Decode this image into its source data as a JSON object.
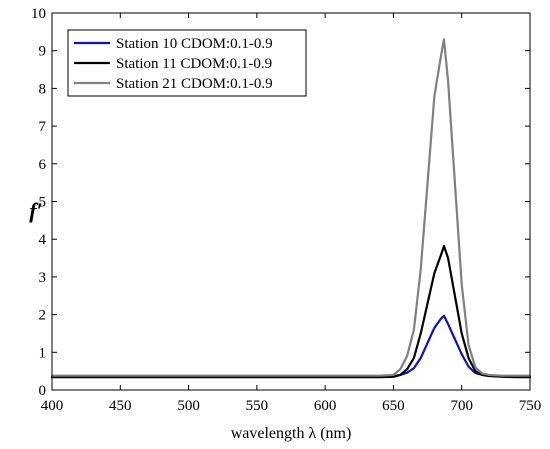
{
  "chart_data": {
    "type": "line",
    "xlabel": "wavelength λ (nm)",
    "ylabel": "f′",
    "xlim": [
      400,
      750
    ],
    "ylim": [
      0,
      10
    ],
    "xticks": [
      400,
      450,
      500,
      550,
      600,
      650,
      700,
      750
    ],
    "yticks": [
      0,
      1,
      2,
      3,
      4,
      5,
      6,
      7,
      8,
      9,
      10
    ],
    "grid": false,
    "legend_position": "top-left",
    "x": [
      400,
      450,
      500,
      550,
      600,
      640,
      650,
      655,
      660,
      665,
      670,
      675,
      680,
      685,
      687,
      690,
      695,
      700,
      705,
      710,
      715,
      720,
      730,
      740,
      750
    ],
    "series": [
      {
        "name": "Station 10 CDOM:0.1-0.9",
        "color": "#1010c8",
        "values": [
          0.36,
          0.36,
          0.36,
          0.36,
          0.36,
          0.36,
          0.37,
          0.4,
          0.46,
          0.58,
          0.85,
          1.25,
          1.65,
          1.9,
          1.97,
          1.75,
          1.35,
          0.95,
          0.62,
          0.45,
          0.4,
          0.38,
          0.37,
          0.36,
          0.36
        ]
      },
      {
        "name": "Station 11 CDOM:0.1-0.9",
        "color": "#000000",
        "values": [
          0.34,
          0.34,
          0.34,
          0.34,
          0.34,
          0.34,
          0.35,
          0.4,
          0.55,
          0.85,
          1.5,
          2.3,
          3.1,
          3.6,
          3.82,
          3.5,
          2.5,
          1.5,
          0.85,
          0.5,
          0.4,
          0.37,
          0.35,
          0.34,
          0.34
        ]
      },
      {
        "name": "Station 21 CDOM:0.1-0.9",
        "color": "#808080",
        "values": [
          0.38,
          0.38,
          0.38,
          0.38,
          0.38,
          0.38,
          0.4,
          0.55,
          0.9,
          1.6,
          3.2,
          5.5,
          7.8,
          8.9,
          9.3,
          8.2,
          5.5,
          2.8,
          1.2,
          0.6,
          0.44,
          0.4,
          0.38,
          0.38,
          0.38
        ]
      }
    ]
  }
}
